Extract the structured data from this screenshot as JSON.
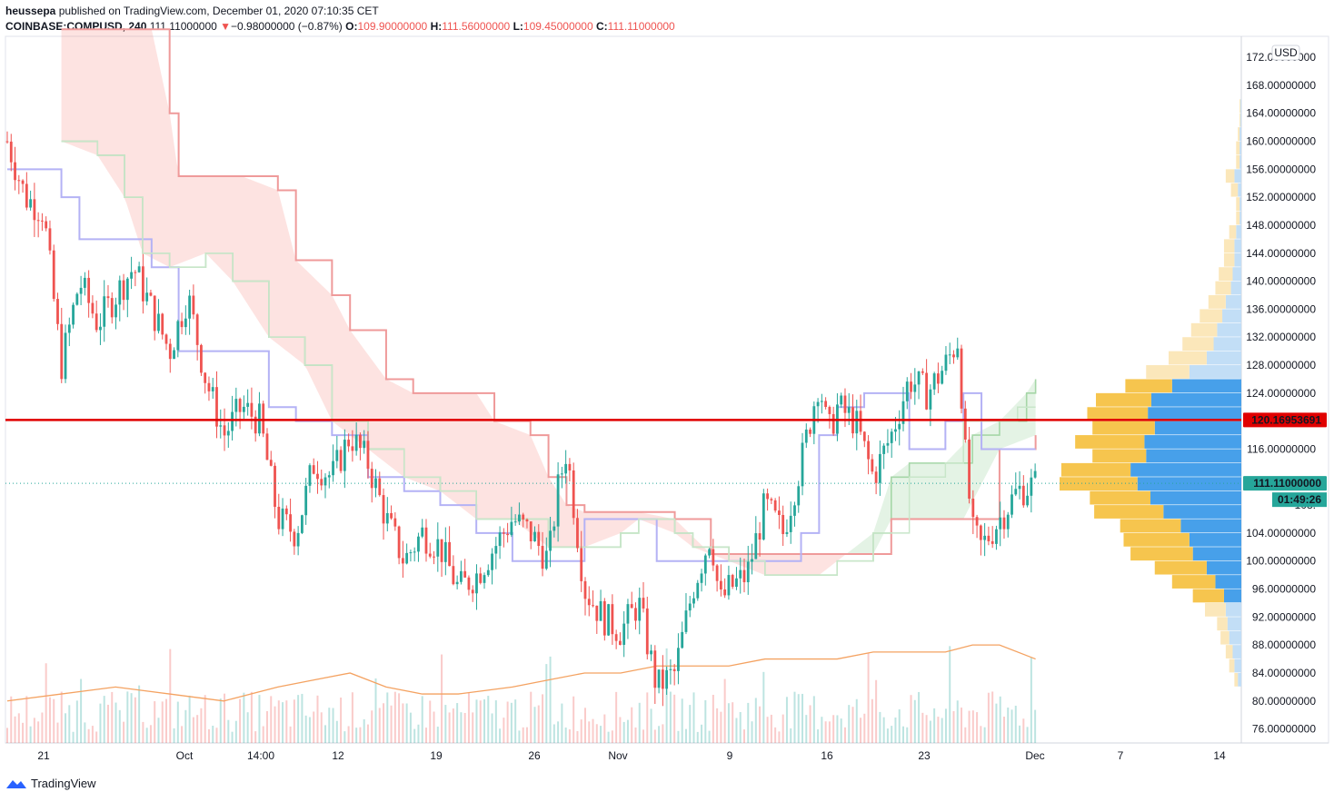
{
  "header": {
    "publisher": "heussepa",
    "published_text": "published on TradingView.com, December 01, 2020 07:10:35 CET",
    "symbol": "COINBASE:COMPUSD, 240",
    "last": "111.11000000",
    "change_arrow": "▼",
    "change": "−0.98000000 (−0.87%)",
    "o_label": "O:",
    "o_value": "109.90000000",
    "h_label": "H:",
    "h_value": "111.56000000",
    "l_label": "L:",
    "l_value": "109.45000000",
    "c_label": "C:",
    "c_value": "111.11000000"
  },
  "footer": {
    "brand": "TradingView",
    "logo_icon": "tradingview-logo-icon"
  },
  "colors": {
    "up": "#26a69a",
    "down": "#ef5350",
    "hline": "#e00000",
    "volume_ma": "#f4a261",
    "vp_blue": "#3d9be9",
    "vp_yellow": "#f6c244"
  },
  "chart_data": {
    "type": "candlestick",
    "currency": "USD",
    "ylim": [
      74,
      175
    ],
    "y_ticks": [
      "172.00000000",
      "168.00000000",
      "164.00000000",
      "160.00000000",
      "156.00000000",
      "152.00000000",
      "148.00000000",
      "144.00000000",
      "140.00000000",
      "136.00000000",
      "132.00000000",
      "128.00000000",
      "124.00000000",
      "116.00000000",
      "108.",
      "104.00000000",
      "100.00000000",
      "96.00000000",
      "92.00000000",
      "88.00000000",
      "84.00000000",
      "80.00000000",
      "76.00000000"
    ],
    "x_ticks": [
      "21",
      "Oct",
      "14:00",
      "12",
      "19",
      "26",
      "Nov",
      "9",
      "16",
      "23",
      "Dec",
      "7",
      "14"
    ],
    "last_price_label": "111.11000000",
    "countdown_label": "01:49:26",
    "horizontal_line": {
      "value": 120.16953691,
      "label": "120.16953691"
    },
    "close_path": [
      [
        0,
        160
      ],
      [
        20,
        152
      ],
      [
        40,
        150
      ],
      [
        60,
        128
      ],
      [
        80,
        140
      ],
      [
        100,
        134
      ],
      [
        120,
        138
      ],
      [
        140,
        142
      ],
      [
        160,
        136
      ],
      [
        180,
        130
      ],
      [
        200,
        138
      ],
      [
        220,
        126
      ],
      [
        240,
        118
      ],
      [
        260,
        122
      ],
      [
        280,
        120
      ],
      [
        300,
        106
      ],
      [
        320,
        104
      ],
      [
        340,
        114
      ],
      [
        360,
        112
      ],
      [
        380,
        118
      ],
      [
        400,
        114
      ],
      [
        420,
        106
      ],
      [
        440,
        100
      ],
      [
        460,
        104
      ],
      [
        480,
        102
      ],
      [
        500,
        96
      ],
      [
        520,
        98
      ],
      [
        540,
        102
      ],
      [
        560,
        106
      ],
      [
        580,
        104
      ],
      [
        600,
        100
      ],
      [
        610,
        110
      ],
      [
        620,
        116
      ],
      [
        630,
        106
      ],
      [
        640,
        96
      ],
      [
        660,
        92
      ],
      [
        680,
        90
      ],
      [
        700,
        94
      ],
      [
        710,
        88
      ],
      [
        720,
        82
      ],
      [
        740,
        84
      ],
      [
        760,
        96
      ],
      [
        780,
        104
      ],
      [
        790,
        94
      ],
      [
        800,
        96
      ],
      [
        820,
        98
      ],
      [
        840,
        108
      ],
      [
        860,
        104
      ],
      [
        880,
        114
      ],
      [
        900,
        126
      ],
      [
        910,
        118
      ],
      [
        920,
        122
      ],
      [
        940,
        120
      ],
      [
        960,
        112
      ],
      [
        980,
        118
      ],
      [
        1000,
        126
      ],
      [
        1020,
        124
      ],
      [
        1040,
        128
      ],
      [
        1055,
        132
      ],
      [
        1060,
        118
      ],
      [
        1070,
        104
      ],
      [
        1080,
        102
      ],
      [
        1100,
        106
      ],
      [
        1120,
        110
      ],
      [
        1140,
        111
      ]
    ],
    "ichimoku": {
      "conversion_line": [
        [
          0,
          156
        ],
        [
          40,
          156
        ],
        [
          60,
          152
        ],
        [
          80,
          146
        ],
        [
          100,
          146
        ],
        [
          130,
          146
        ],
        [
          160,
          142
        ],
        [
          190,
          130
        ],
        [
          210,
          130
        ],
        [
          230,
          130
        ],
        [
          260,
          130
        ],
        [
          290,
          122
        ],
        [
          320,
          120
        ],
        [
          360,
          118
        ],
        [
          400,
          112
        ],
        [
          440,
          110
        ],
        [
          480,
          108
        ],
        [
          520,
          104
        ],
        [
          560,
          100
        ],
        [
          600,
          100
        ],
        [
          640,
          106
        ],
        [
          680,
          106
        ],
        [
          700,
          106
        ],
        [
          720,
          100
        ],
        [
          760,
          100
        ],
        [
          800,
          100
        ],
        [
          840,
          100
        ],
        [
          880,
          104
        ],
        [
          900,
          118
        ],
        [
          920,
          122
        ],
        [
          950,
          124
        ],
        [
          1000,
          116
        ],
        [
          1040,
          120
        ],
        [
          1060,
          124
        ],
        [
          1080,
          116
        ],
        [
          1100,
          116
        ],
        [
          1140,
          116
        ]
      ],
      "base_line": [
        [
          60,
          160
        ],
        [
          100,
          158
        ],
        [
          130,
          152
        ],
        [
          150,
          144
        ],
        [
          180,
          142
        ],
        [
          220,
          144
        ],
        [
          250,
          140
        ],
        [
          290,
          132
        ],
        [
          330,
          128
        ],
        [
          360,
          120
        ],
        [
          400,
          116
        ],
        [
          440,
          112
        ],
        [
          480,
          110
        ],
        [
          520,
          106
        ],
        [
          560,
          106
        ],
        [
          600,
          102
        ],
        [
          640,
          102
        ],
        [
          680,
          104
        ],
        [
          700,
          106
        ],
        [
          740,
          104
        ],
        [
          760,
          102
        ],
        [
          800,
          100
        ],
        [
          840,
          98
        ],
        [
          880,
          98
        ],
        [
          900,
          98
        ],
        [
          920,
          100
        ],
        [
          960,
          104
        ],
        [
          1000,
          112
        ],
        [
          1040,
          114
        ],
        [
          1060,
          120
        ],
        [
          1090,
          120
        ],
        [
          1120,
          122
        ],
        [
          1140,
          122
        ]
      ],
      "span_a": [
        [
          60,
          160
        ],
        [
          100,
          158
        ],
        [
          130,
          152
        ],
        [
          150,
          144
        ],
        [
          180,
          142
        ],
        [
          220,
          144
        ],
        [
          250,
          140
        ],
        [
          290,
          132
        ],
        [
          330,
          128
        ],
        [
          360,
          120
        ],
        [
          400,
          116
        ],
        [
          440,
          112
        ],
        [
          480,
          110
        ],
        [
          520,
          106
        ],
        [
          560,
          106
        ],
        [
          600,
          102
        ],
        [
          640,
          102
        ],
        [
          680,
          104
        ],
        [
          700,
          106
        ],
        [
          740,
          104
        ],
        [
          760,
          102
        ],
        [
          800,
          100
        ],
        [
          840,
          98
        ],
        [
          880,
          98
        ],
        [
          900,
          98
        ],
        [
          920,
          100
        ],
        [
          960,
          104
        ],
        [
          980,
          112
        ],
        [
          1000,
          114
        ],
        [
          1040,
          114
        ],
        [
          1070,
          118
        ],
        [
          1100,
          120
        ],
        [
          1130,
          124
        ],
        [
          1140,
          126
        ]
      ],
      "span_b": [
        [
          60,
          176
        ],
        [
          160,
          176
        ],
        [
          180,
          164
        ],
        [
          190,
          155
        ],
        [
          260,
          155
        ],
        [
          300,
          153
        ],
        [
          320,
          143
        ],
        [
          360,
          138
        ],
        [
          380,
          133
        ],
        [
          420,
          126
        ],
        [
          450,
          124
        ],
        [
          520,
          124
        ],
        [
          540,
          120
        ],
        [
          580,
          118
        ],
        [
          600,
          112
        ],
        [
          620,
          108
        ],
        [
          640,
          107
        ],
        [
          700,
          107
        ],
        [
          740,
          106
        ],
        [
          780,
          101
        ],
        [
          860,
          101
        ],
        [
          900,
          101
        ],
        [
          960,
          101
        ],
        [
          980,
          106
        ],
        [
          1020,
          106
        ],
        [
          1060,
          106
        ],
        [
          1100,
          116
        ],
        [
          1140,
          118
        ]
      ]
    },
    "volume_ma": [
      [
        0,
        80
      ],
      [
        60,
        81
      ],
      [
        120,
        82
      ],
      [
        180,
        81
      ],
      [
        240,
        80
      ],
      [
        300,
        82
      ],
      [
        340,
        83
      ],
      [
        380,
        84
      ],
      [
        420,
        82
      ],
      [
        460,
        81
      ],
      [
        500,
        81
      ],
      [
        560,
        82
      ],
      [
        600,
        83
      ],
      [
        640,
        84
      ],
      [
        680,
        84
      ],
      [
        720,
        85
      ],
      [
        760,
        85
      ],
      [
        800,
        85
      ],
      [
        840,
        86
      ],
      [
        880,
        86
      ],
      [
        920,
        86
      ],
      [
        960,
        87
      ],
      [
        1000,
        87
      ],
      [
        1040,
        87
      ],
      [
        1070,
        88
      ],
      [
        1100,
        88
      ],
      [
        1140,
        86
      ]
    ],
    "volume_profile": {
      "price_bins": [
        82,
        84,
        86,
        88,
        90,
        92,
        94,
        96,
        98,
        100,
        102,
        104,
        106,
        108,
        110,
        112,
        114,
        116,
        118,
        120,
        122,
        124,
        126,
        128,
        130,
        132,
        134,
        136,
        138,
        140,
        142,
        144,
        146,
        148,
        150,
        152,
        154,
        156,
        158,
        160,
        162,
        164
      ],
      "up_volume": [
        4,
        8,
        10,
        14,
        16,
        18,
        20,
        30,
        40,
        56,
        60,
        70,
        90,
        105,
        120,
        128,
        110,
        112,
        100,
        108,
        104,
        80,
        60,
        40,
        32,
        28,
        22,
        18,
        12,
        10,
        8,
        8,
        6,
        2,
        2,
        4,
        8,
        2,
        2,
        2,
        1,
        1
      ],
      "down_volume": [
        4,
        6,
        8,
        10,
        12,
        24,
        36,
        50,
        60,
        72,
        76,
        70,
        80,
        70,
        90,
        80,
        62,
        80,
        72,
        70,
        64,
        54,
        50,
        44,
        36,
        30,
        26,
        20,
        18,
        16,
        12,
        12,
        8,
        4,
        4,
        8,
        10,
        4,
        4,
        2,
        1,
        1
      ]
    }
  }
}
